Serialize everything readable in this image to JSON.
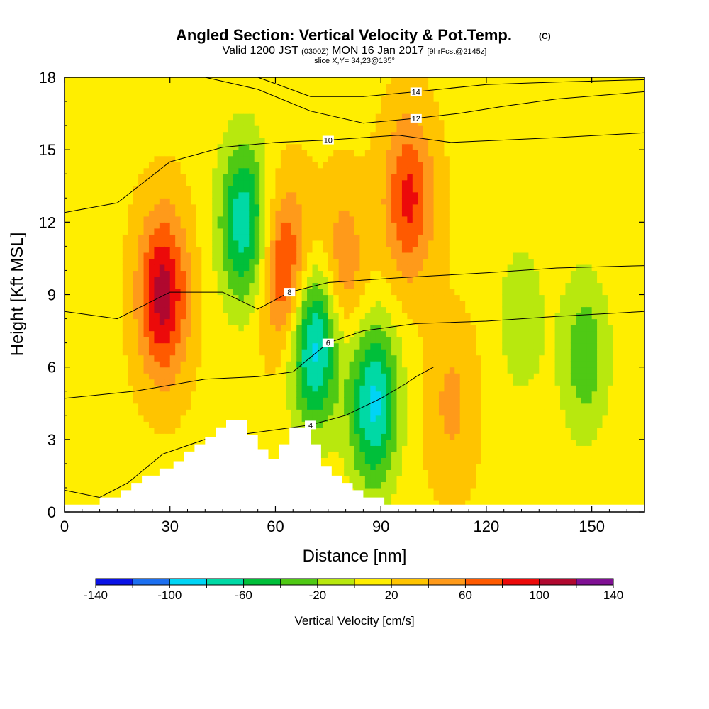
{
  "header": {
    "title": "Angled Section: Vertical Velocity & Pot.Temp.",
    "title_units": "(C)",
    "valid_prefix": "Valid 1200 JST",
    "valid_zulu": "(0300Z)",
    "valid_date": "MON 16 Jan 2017",
    "forecast": "[9hrFcst@2145z]",
    "slice": "slice X,Y= 34,23@135°"
  },
  "chart_data": {
    "type": "heatmap",
    "xlabel": "Distance [nm]",
    "ylabel": "Height [Kft MSL]",
    "xlim": [
      0,
      165
    ],
    "ylim": [
      0,
      18
    ],
    "x_ticks": [
      0,
      30,
      60,
      90,
      120,
      150
    ],
    "x_tick_labels": [
      "0",
      "30",
      "60",
      "90",
      "120",
      "150"
    ],
    "y_ticks": [
      0,
      3,
      6,
      9,
      12,
      15,
      18
    ],
    "y_tick_labels": [
      "0",
      "3",
      "6",
      "9",
      "12",
      "15",
      "18"
    ],
    "colorbar": {
      "label": "Vertical Velocity [cm/s]",
      "min": -140,
      "max": 140,
      "step": 20,
      "tick_values": [
        -140,
        -100,
        -60,
        -20,
        20,
        60,
        100,
        140
      ],
      "tick_labels": [
        "-140",
        "-100",
        "-60",
        "-20",
        "20",
        "60",
        "100",
        "140"
      ],
      "colors": [
        "#0a12e6",
        "#1c6ff0",
        "#00d4f5",
        "#00d9a5",
        "#00bf3a",
        "#4fc914",
        "#b8e80e",
        "#ffee00",
        "#ffc400",
        "#ff9a1a",
        "#ff5a00",
        "#ec0a0a",
        "#b0082f",
        "#7f1093"
      ]
    },
    "terrain": [
      [
        0,
        0.3
      ],
      [
        10,
        0.3
      ],
      [
        10,
        0.6
      ],
      [
        16,
        0.6
      ],
      [
        16,
        0.9
      ],
      [
        19,
        0.9
      ],
      [
        19,
        1.2
      ],
      [
        22,
        1.2
      ],
      [
        22,
        1.5
      ],
      [
        27,
        1.5
      ],
      [
        27,
        1.8
      ],
      [
        31,
        1.8
      ],
      [
        31,
        2.1
      ],
      [
        34,
        2.1
      ],
      [
        34,
        2.5
      ],
      [
        37,
        2.5
      ],
      [
        37,
        2.8
      ],
      [
        40,
        2.8
      ],
      [
        40,
        3.1
      ],
      [
        43,
        3.1
      ],
      [
        43,
        3.5
      ],
      [
        46,
        3.5
      ],
      [
        46,
        3.8
      ],
      [
        52,
        3.8
      ],
      [
        52,
        3.2
      ],
      [
        55,
        3.2
      ],
      [
        55,
        2.6
      ],
      [
        58,
        2.6
      ],
      [
        58,
        2.2
      ],
      [
        61,
        2.2
      ],
      [
        61,
        2.8
      ],
      [
        64,
        2.8
      ],
      [
        64,
        3.5
      ],
      [
        70,
        3.5
      ],
      [
        70,
        2.8
      ],
      [
        73,
        2.8
      ],
      [
        73,
        1.9
      ],
      [
        76,
        1.9
      ],
      [
        76,
        1.5
      ],
      [
        79,
        1.5
      ],
      [
        79,
        1.2
      ],
      [
        82,
        1.2
      ],
      [
        82,
        0.9
      ],
      [
        85,
        0.9
      ],
      [
        85,
        0.6
      ],
      [
        91,
        0.6
      ],
      [
        91,
        0.3
      ],
      [
        165,
        0.3
      ]
    ],
    "w_sources": [
      {
        "x": 28,
        "y": 9,
        "value": 110
      },
      {
        "x": 63,
        "y": 10,
        "value": 90
      },
      {
        "x": 98,
        "y": 13,
        "value": 85
      },
      {
        "x": 79,
        "y": 10,
        "value": 60
      },
      {
        "x": 110,
        "y": 4.5,
        "value": 45
      },
      {
        "x": 51,
        "y": 12,
        "value": -75
      },
      {
        "x": 71,
        "y": 7,
        "value": -95
      },
      {
        "x": 88,
        "y": 4.5,
        "value": -85
      },
      {
        "x": 148,
        "y": 6.5,
        "value": -35
      },
      {
        "x": 130,
        "y": 8,
        "value": -15
      }
    ],
    "theta_lines": [
      {
        "value": 4,
        "label": "4",
        "points": [
          [
            0,
            0.9
          ],
          [
            10,
            0.6
          ],
          [
            18,
            1.2
          ],
          [
            28,
            2.4
          ],
          [
            40,
            3.0
          ],
          [
            55,
            3.3
          ],
          [
            70,
            3.6
          ],
          [
            80,
            4.0
          ],
          [
            90,
            4.7
          ],
          [
            97,
            5.3
          ],
          [
            100,
            5.6
          ],
          [
            105,
            6.0
          ]
        ]
      },
      {
        "value": 6,
        "label": "6",
        "points": [
          [
            0,
            4.7
          ],
          [
            20,
            5.0
          ],
          [
            40,
            5.5
          ],
          [
            55,
            5.6
          ],
          [
            65,
            5.8
          ],
          [
            75,
            7.0
          ],
          [
            85,
            7.5
          ],
          [
            100,
            7.8
          ],
          [
            120,
            7.9
          ],
          [
            140,
            8.1
          ],
          [
            165,
            8.3
          ]
        ]
      },
      {
        "value": 8,
        "label": "8",
        "points": [
          [
            0,
            8.3
          ],
          [
            15,
            8.0
          ],
          [
            30,
            9.1
          ],
          [
            45,
            9.1
          ],
          [
            55,
            8.4
          ],
          [
            64,
            9.1
          ],
          [
            75,
            9.5
          ],
          [
            95,
            9.7
          ],
          [
            120,
            9.9
          ],
          [
            140,
            10.1
          ],
          [
            165,
            10.2
          ]
        ]
      },
      {
        "value": 10,
        "label": "10",
        "points": [
          [
            0,
            12.4
          ],
          [
            15,
            12.8
          ],
          [
            30,
            14.5
          ],
          [
            45,
            15.1
          ],
          [
            60,
            15.3
          ],
          [
            75,
            15.4
          ],
          [
            95,
            15.6
          ],
          [
            110,
            15.3
          ],
          [
            125,
            15.4
          ],
          [
            140,
            15.5
          ],
          [
            165,
            15.7
          ]
        ]
      },
      {
        "value": 12,
        "label": "12",
        "points": [
          [
            40,
            18
          ],
          [
            55,
            17.5
          ],
          [
            70,
            16.6
          ],
          [
            85,
            16.1
          ],
          [
            100,
            16.3
          ],
          [
            112,
            16.5
          ],
          [
            125,
            16.8
          ],
          [
            140,
            17.1
          ],
          [
            165,
            17.4
          ]
        ]
      },
      {
        "value": 14,
        "label": "14",
        "points": [
          [
            55,
            18
          ],
          [
            70,
            17.2
          ],
          [
            85,
            17.2
          ],
          [
            100,
            17.4
          ],
          [
            120,
            17.7
          ],
          [
            140,
            17.8
          ],
          [
            165,
            17.9
          ]
        ]
      }
    ]
  }
}
